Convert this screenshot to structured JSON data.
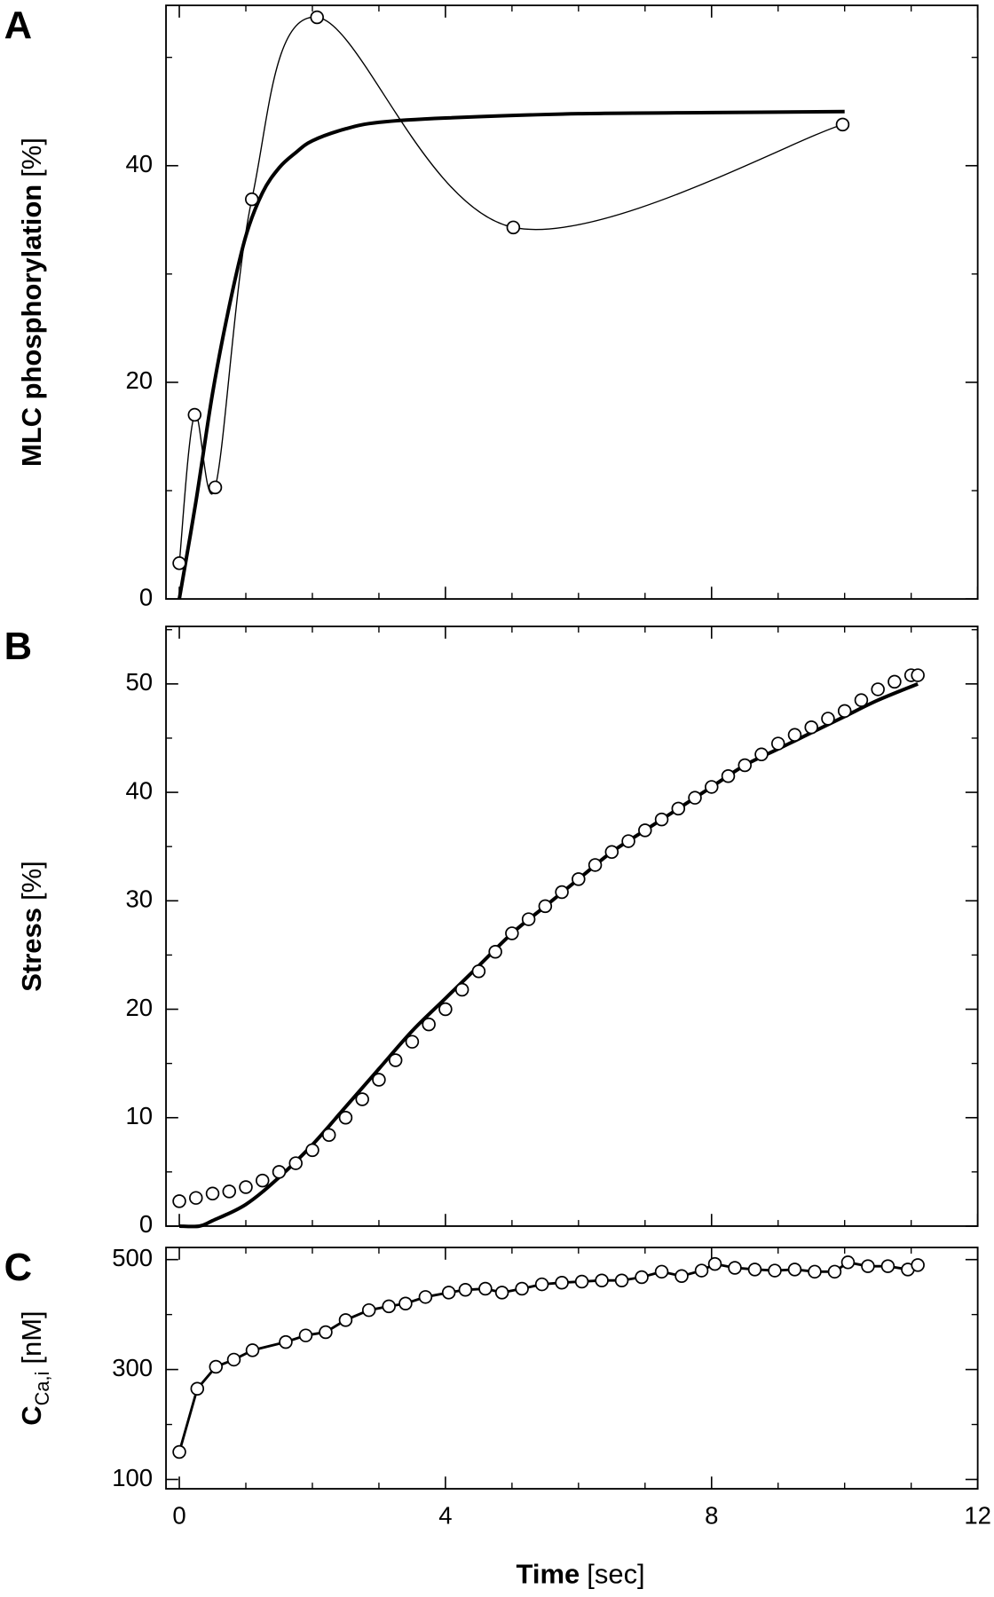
{
  "chart_data": [
    {
      "type": "line",
      "panel": "A",
      "ylabel": "MLC phosphorylation",
      "ylabel_unit": "[%]",
      "xlim": [
        -0.2,
        12
      ],
      "xticks": [
        0,
        4,
        8,
        12
      ],
      "ylim": [
        0,
        54.8
      ],
      "yticks": [
        0,
        20,
        40
      ],
      "series": [
        {
          "color": "#000000",
          "marker": "circle",
          "line": "spline",
          "line_width": 1.2,
          "x": [
            0,
            0.23,
            0.54,
            1.09,
            2.07,
            5.02,
            9.97
          ],
          "values": [
            3.3,
            17.0,
            10.3,
            36.9,
            53.7,
            34.3,
            43.8
          ]
        },
        {
          "color": "#000000",
          "marker": "none",
          "line": "spline",
          "line_width": 3.5,
          "x": [
            0,
            0.25,
            0.5,
            0.75,
            1,
            1.25,
            1.5,
            1.75,
            2,
            2.5,
            3,
            4,
            6,
            8,
            10
          ],
          "values": [
            0,
            9,
            19,
            27,
            33.5,
            37.5,
            39.8,
            41.2,
            42.3,
            43.4,
            44.0,
            44.4,
            44.8,
            44.9,
            45.0
          ]
        }
      ]
    },
    {
      "type": "line",
      "panel": "B",
      "ylabel": "Stress",
      "ylabel_unit": "[%]",
      "xlim": [
        -0.2,
        12
      ],
      "xticks": [
        0,
        4,
        8,
        12
      ],
      "ylim": [
        0,
        55.3
      ],
      "yticks": [
        0,
        10,
        20,
        30,
        40,
        50
      ],
      "series": [
        {
          "color": "#000000",
          "marker": "circle",
          "line": "none",
          "line_width": 0,
          "x": [
            0,
            0.25,
            0.5,
            0.75,
            1,
            1.25,
            1.5,
            1.75,
            2,
            2.25,
            2.5,
            2.75,
            3,
            3.25,
            3.5,
            3.75,
            4,
            4.25,
            4.5,
            4.75,
            5,
            5.25,
            5.5,
            5.75,
            6,
            6.25,
            6.5,
            6.75,
            7,
            7.25,
            7.5,
            7.75,
            8,
            8.25,
            8.5,
            8.75,
            9,
            9.25,
            9.5,
            9.75,
            10,
            10.25,
            10.5,
            10.75,
            11,
            11.1
          ],
          "values": [
            2.3,
            2.6,
            3.0,
            3.2,
            3.6,
            4.2,
            5.0,
            5.8,
            7.0,
            8.4,
            10.0,
            11.7,
            13.5,
            15.3,
            17.0,
            18.6,
            20.0,
            21.8,
            23.5,
            25.3,
            27.0,
            28.3,
            29.5,
            30.8,
            32.0,
            33.3,
            34.5,
            35.5,
            36.5,
            37.5,
            38.5,
            39.5,
            40.5,
            41.5,
            42.5,
            43.5,
            44.5,
            45.3,
            46.0,
            46.8,
            47.5,
            48.5,
            49.5,
            50.2,
            50.8,
            50.8
          ]
        },
        {
          "color": "#000000",
          "marker": "none",
          "line": "spline",
          "line_width": 3.5,
          "x": [
            0,
            0.3,
            0.5,
            1,
            1.5,
            2,
            2.5,
            3,
            3.5,
            4,
            4.5,
            5,
            5.5,
            6,
            6.5,
            7,
            7.5,
            8,
            8.5,
            9,
            9.5,
            10,
            10.5,
            11.1
          ],
          "values": [
            0,
            0,
            0.5,
            2.0,
            4.5,
            7.5,
            11.0,
            14.5,
            18.0,
            21.0,
            24.0,
            27.0,
            29.5,
            32.0,
            34.5,
            36.5,
            38.5,
            40.5,
            42.5,
            44.0,
            45.5,
            47.0,
            48.5,
            50.0
          ]
        }
      ]
    },
    {
      "type": "line",
      "panel": "C",
      "ylabel": "C",
      "ylabel_sub": "Ca,i",
      "ylabel_unit": "[nM]",
      "xlabel": "Time",
      "xlabel_unit": "[sec]",
      "xlim": [
        -0.2,
        12
      ],
      "xticks": [
        0,
        4,
        8,
        12
      ],
      "ylim": [
        83,
        522
      ],
      "yticks": [
        100,
        300,
        500
      ],
      "series": [
        {
          "color": "#000000",
          "marker": "circle",
          "line": "straight",
          "line_width": 2.5,
          "x": [
            0,
            0.27,
            0.55,
            0.82,
            1.1,
            1.6,
            1.9,
            2.2,
            2.5,
            2.85,
            3.15,
            3.4,
            3.7,
            4.05,
            4.3,
            4.6,
            4.85,
            5.15,
            5.45,
            5.75,
            6.05,
            6.35,
            6.65,
            6.95,
            7.25,
            7.55,
            7.85,
            8.05,
            8.35,
            8.65,
            8.95,
            9.25,
            9.55,
            9.85,
            10.05,
            10.35,
            10.65,
            10.95,
            11.1
          ],
          "values": [
            150,
            265,
            305,
            318,
            335,
            350,
            362,
            368,
            390,
            408,
            415,
            420,
            432,
            440,
            445,
            447,
            440,
            447,
            455,
            458,
            460,
            462,
            462,
            468,
            478,
            470,
            480,
            492,
            485,
            482,
            480,
            482,
            478,
            478,
            495,
            488,
            488,
            482,
            490
          ]
        }
      ]
    }
  ]
}
